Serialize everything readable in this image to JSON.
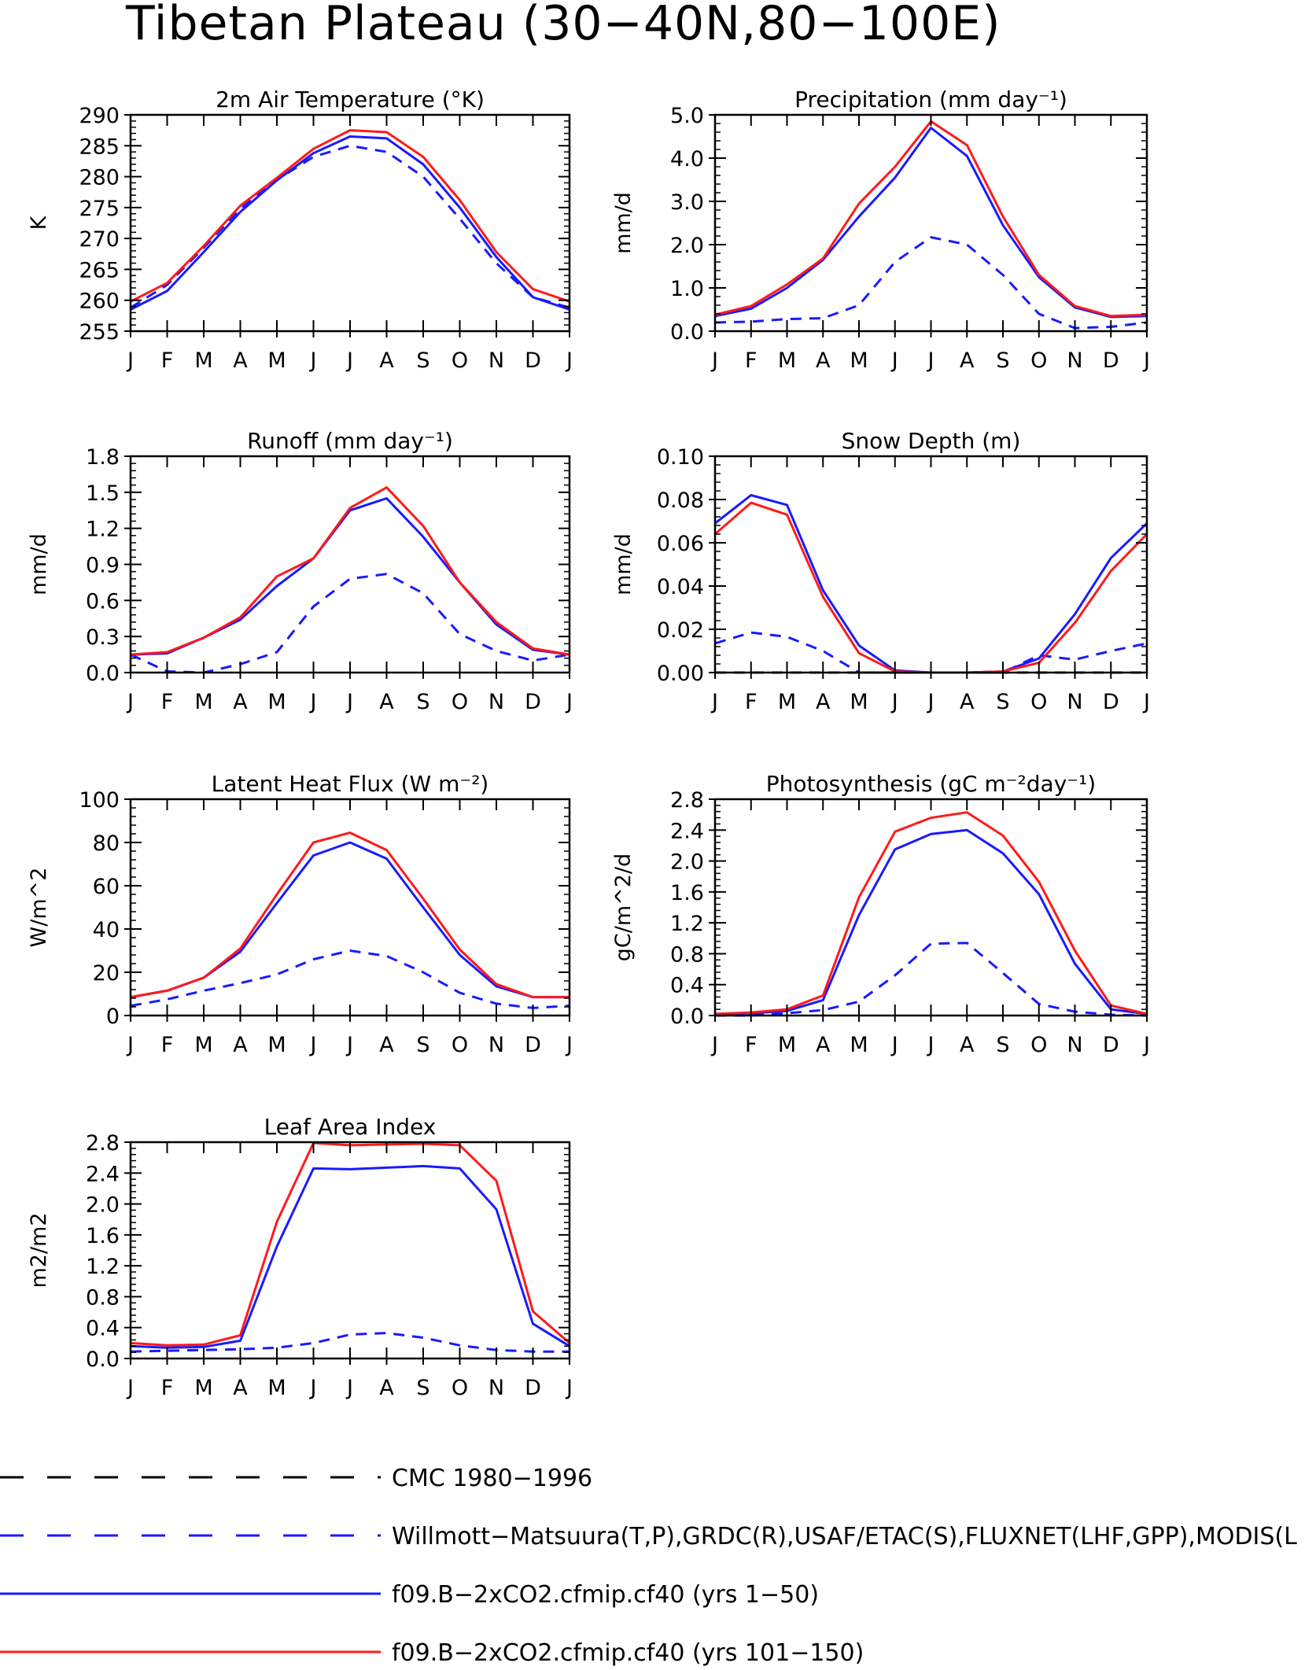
{
  "figure": {
    "title": "Tibetan Plateau (30−40N,80−100E)"
  },
  "colors": {
    "model_early": "#1a1aff",
    "model_late": "#ff1a1a",
    "obs": "#1a1aff",
    "cmc": "#000000",
    "axis": "#000000"
  },
  "months": [
    "J",
    "F",
    "M",
    "A",
    "M",
    "J",
    "J",
    "A",
    "S",
    "O",
    "N",
    "D",
    "J"
  ],
  "legend": {
    "entries": [
      {
        "label": "CMC 1980−1996",
        "color": "#000000",
        "style": "dashed"
      },
      {
        "label": "Willmott−Matsuura(T,P),GRDC(R),USAF/ETAC(S),FLUXNET(LHF,GPP),MODIS(L",
        "color": "#1a1aff",
        "style": "dashed"
      },
      {
        "label": "f09.B−2xCO2.cfmip.cf40 (yrs 1−50)",
        "color": "#1a1aff",
        "style": "solid"
      },
      {
        "label": "f09.B−2xCO2.cfmip.cf40 (yrs 101−150)",
        "color": "#ff1a1a",
        "style": "solid"
      }
    ]
  },
  "chart_data": [
    {
      "type": "line",
      "title": "2m Air Temperature (°K)",
      "ylabel": "K",
      "ylim": [
        255,
        290
      ],
      "yticks": [
        "255",
        "260",
        "265",
        "270",
        "275",
        "280",
        "285",
        "290"
      ],
      "categories": [
        "J",
        "F",
        "M",
        "A",
        "M",
        "J",
        "J",
        "A",
        "S",
        "O",
        "N",
        "D",
        "J"
      ],
      "series": [
        {
          "role": "obs",
          "style": "dashed",
          "color": "#1a1aff",
          "values": [
            258.8,
            262.5,
            268.5,
            274.8,
            279.5,
            283.2,
            285.0,
            284.0,
            280.0,
            273.2,
            266.0,
            260.5,
            258.8
          ]
        },
        {
          "role": "model_early",
          "style": "solid",
          "color": "#1a1aff",
          "values": [
            258.5,
            261.5,
            267.8,
            274.3,
            279.4,
            283.8,
            286.5,
            286.2,
            282.0,
            275.0,
            267.0,
            260.5,
            258.5
          ]
        },
        {
          "role": "model_late",
          "style": "solid",
          "color": "#ff1a1a",
          "values": [
            259.8,
            262.8,
            268.8,
            275.3,
            279.8,
            284.5,
            287.5,
            287.2,
            283.2,
            276.2,
            267.8,
            261.8,
            259.8
          ]
        }
      ]
    },
    {
      "type": "line",
      "title": "Precipitation (mm day⁻¹)",
      "ylabel": "mm/d",
      "ylim": [
        0,
        5
      ],
      "yticks": [
        "0.0",
        "1.0",
        "2.0",
        "3.0",
        "4.0",
        "5.0"
      ],
      "categories": [
        "J",
        "F",
        "M",
        "A",
        "M",
        "J",
        "J",
        "A",
        "S",
        "O",
        "N",
        "D",
        "J"
      ],
      "series": [
        {
          "role": "obs",
          "style": "dashed",
          "color": "#1a1aff",
          "values": [
            0.2,
            0.22,
            0.28,
            0.3,
            0.6,
            1.6,
            2.17,
            2.0,
            1.3,
            0.4,
            0.07,
            0.1,
            0.2
          ]
        },
        {
          "role": "model_early",
          "style": "solid",
          "color": "#1a1aff",
          "values": [
            0.35,
            0.52,
            1.0,
            1.65,
            2.65,
            3.55,
            4.7,
            4.05,
            2.45,
            1.25,
            0.55,
            0.33,
            0.35
          ]
        },
        {
          "role": "model_late",
          "style": "solid",
          "color": "#ff1a1a",
          "values": [
            0.38,
            0.58,
            1.08,
            1.68,
            2.95,
            3.8,
            4.85,
            4.3,
            2.65,
            1.3,
            0.58,
            0.35,
            0.38
          ]
        }
      ]
    },
    {
      "type": "line",
      "title": "Runoff (mm day⁻¹)",
      "ylabel": "mm/d",
      "ylim": [
        0,
        1.8
      ],
      "yticks": [
        "0.0",
        "0.3",
        "0.6",
        "0.9",
        "1.2",
        "1.5",
        "1.8"
      ],
      "categories": [
        "J",
        "F",
        "M",
        "A",
        "M",
        "J",
        "J",
        "A",
        "S",
        "O",
        "N",
        "D",
        "J"
      ],
      "series": [
        {
          "role": "obs",
          "style": "dashed",
          "color": "#1a1aff",
          "values": [
            0.15,
            0.01,
            0.0,
            0.07,
            0.17,
            0.55,
            0.78,
            0.82,
            0.66,
            0.32,
            0.18,
            0.1,
            0.15
          ]
        },
        {
          "role": "model_early",
          "style": "solid",
          "color": "#1a1aff",
          "values": [
            0.15,
            0.16,
            0.29,
            0.44,
            0.72,
            0.95,
            1.35,
            1.45,
            1.13,
            0.75,
            0.4,
            0.19,
            0.15
          ]
        },
        {
          "role": "model_late",
          "style": "solid",
          "color": "#ff1a1a",
          "values": [
            0.15,
            0.17,
            0.29,
            0.46,
            0.8,
            0.95,
            1.37,
            1.54,
            1.22,
            0.75,
            0.42,
            0.2,
            0.15
          ]
        }
      ]
    },
    {
      "type": "line",
      "title": "Snow Depth (m)",
      "ylabel": "mm/d",
      "ylim": [
        0,
        0.1
      ],
      "yticks": [
        "0.00",
        "0.02",
        "0.04",
        "0.06",
        "0.08",
        "0.10"
      ],
      "categories": [
        "J",
        "F",
        "M",
        "A",
        "M",
        "J",
        "J",
        "A",
        "S",
        "O",
        "N",
        "D",
        "J"
      ],
      "series": [
        {
          "role": "cmc",
          "style": "dashed",
          "color": "#000000",
          "values": [
            0.0,
            0.0,
            0.0,
            0.0,
            0.0,
            0.0,
            0.0,
            0.0,
            0.0,
            0.0,
            0.0,
            0.0,
            0.0
          ]
        },
        {
          "role": "obs",
          "style": "dashed",
          "color": "#1a1aff",
          "values": [
            0.0135,
            0.0185,
            0.0165,
            0.01,
            0.0,
            0.0,
            0.0,
            0.0,
            0.0,
            0.008,
            0.006,
            0.01,
            0.0135
          ]
        },
        {
          "role": "model_early",
          "style": "solid",
          "color": "#1a1aff",
          "values": [
            0.069,
            0.082,
            0.0775,
            0.038,
            0.0125,
            0.001,
            0.0,
            0.0,
            0.0005,
            0.0065,
            0.027,
            0.053,
            0.069
          ]
        },
        {
          "role": "model_late",
          "style": "solid",
          "color": "#ff1a1a",
          "values": [
            0.064,
            0.0785,
            0.073,
            0.035,
            0.009,
            0.0005,
            0.0,
            0.0,
            0.0005,
            0.0045,
            0.023,
            0.047,
            0.064
          ]
        }
      ]
    },
    {
      "type": "line",
      "title": "Latent Heat Flux (W m⁻²)",
      "ylabel": "W/m^2",
      "ylim": [
        0,
        100
      ],
      "yticks": [
        "0",
        "20",
        "40",
        "60",
        "80",
        "100"
      ],
      "categories": [
        "J",
        "F",
        "M",
        "A",
        "M",
        "J",
        "J",
        "A",
        "S",
        "O",
        "N",
        "D",
        "J"
      ],
      "series": [
        {
          "role": "obs",
          "style": "dashed",
          "color": "#1a1aff",
          "values": [
            4.5,
            7.5,
            11.5,
            15.0,
            19.0,
            26.0,
            30.0,
            27.5,
            20.0,
            10.5,
            5.5,
            3.5,
            4.5
          ]
        },
        {
          "role": "model_early",
          "style": "solid",
          "color": "#1a1aff",
          "values": [
            8.5,
            11.5,
            17.5,
            29.5,
            52.0,
            74.0,
            80.0,
            72.5,
            50.0,
            28.0,
            13.5,
            8.5,
            8.5
          ]
        },
        {
          "role": "model_late",
          "style": "solid",
          "color": "#ff1a1a",
          "values": [
            8.5,
            11.5,
            17.5,
            31.0,
            56.0,
            80.0,
            84.5,
            76.5,
            54.0,
            30.5,
            14.5,
            8.5,
            8.5
          ]
        }
      ]
    },
    {
      "type": "line",
      "title": "Photosynthesis (gC m⁻²day⁻¹)",
      "ylabel": "gC/m^2/d",
      "ylim": [
        0,
        2.8
      ],
      "yticks": [
        "0.0",
        "0.4",
        "0.8",
        "1.2",
        "1.6",
        "2.0",
        "2.4",
        "2.8"
      ],
      "categories": [
        "J",
        "F",
        "M",
        "A",
        "M",
        "J",
        "J",
        "A",
        "S",
        "O",
        "N",
        "D",
        "J"
      ],
      "series": [
        {
          "role": "obs",
          "style": "dashed",
          "color": "#1a1aff",
          "values": [
            0.0,
            0.0,
            0.03,
            0.07,
            0.18,
            0.52,
            0.93,
            0.94,
            0.55,
            0.15,
            0.05,
            0.01,
            0.0
          ]
        },
        {
          "role": "model_early",
          "style": "solid",
          "color": "#1a1aff",
          "values": [
            0.02,
            0.03,
            0.06,
            0.2,
            1.3,
            2.15,
            2.35,
            2.4,
            2.1,
            1.57,
            0.67,
            0.08,
            0.02
          ]
        },
        {
          "role": "model_late",
          "style": "solid",
          "color": "#ff1a1a",
          "values": [
            0.02,
            0.04,
            0.08,
            0.26,
            1.53,
            2.38,
            2.56,
            2.63,
            2.33,
            1.73,
            0.84,
            0.13,
            0.02
          ]
        }
      ]
    },
    {
      "type": "line",
      "title": "Leaf Area Index",
      "ylabel": "m2/m2",
      "ylim": [
        0,
        2.8
      ],
      "yticks": [
        "0.0",
        "0.4",
        "0.8",
        "1.2",
        "1.6",
        "2.0",
        "2.4",
        "2.8"
      ],
      "categories": [
        "J",
        "F",
        "M",
        "A",
        "M",
        "J",
        "J",
        "A",
        "S",
        "O",
        "N",
        "D",
        "J"
      ],
      "series": [
        {
          "role": "obs",
          "style": "dashed",
          "color": "#1a1aff",
          "values": [
            0.09,
            0.1,
            0.11,
            0.12,
            0.14,
            0.2,
            0.31,
            0.33,
            0.27,
            0.17,
            0.11,
            0.09,
            0.09
          ]
        },
        {
          "role": "model_early",
          "style": "solid",
          "color": "#1a1aff",
          "values": [
            0.16,
            0.14,
            0.15,
            0.23,
            1.45,
            2.46,
            2.45,
            2.47,
            2.49,
            2.46,
            1.93,
            0.45,
            0.16
          ]
        },
        {
          "role": "model_late",
          "style": "solid",
          "color": "#ff1a1a",
          "values": [
            0.2,
            0.17,
            0.18,
            0.3,
            1.77,
            2.79,
            2.76,
            2.77,
            2.78,
            2.76,
            2.3,
            0.61,
            0.2
          ]
        }
      ]
    }
  ]
}
